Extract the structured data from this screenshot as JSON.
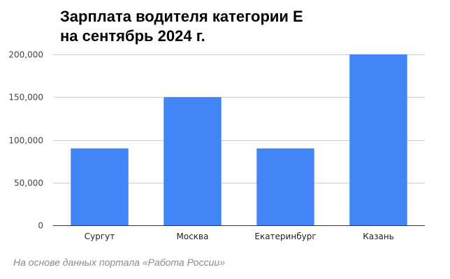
{
  "title_lines": [
    "Зарплата водителя категории Е",
    "на  сентябрь 2024 г."
  ],
  "source": "На основе данных портала «Работа России»",
  "chart_data": {
    "type": "bar",
    "title": "Зарплата водителя категории Е на  сентябрь 2024 г.",
    "categories": [
      "Сургут",
      "Москва",
      "Екатеринбург",
      "Казань"
    ],
    "values": [
      90000,
      150000,
      90000,
      200000
    ],
    "ylim": [
      0,
      200000
    ],
    "yticks": [
      0,
      50000,
      100000,
      150000,
      200000
    ],
    "ytick_labels": [
      "0",
      "50,000",
      "100,000",
      "150,000",
      "200,000"
    ],
    "xlabel": "",
    "ylabel": "",
    "grid": true,
    "legend": "none",
    "bar_color": "#4285f4",
    "grid_color": "#cccccc",
    "axis_color": "#333333"
  }
}
